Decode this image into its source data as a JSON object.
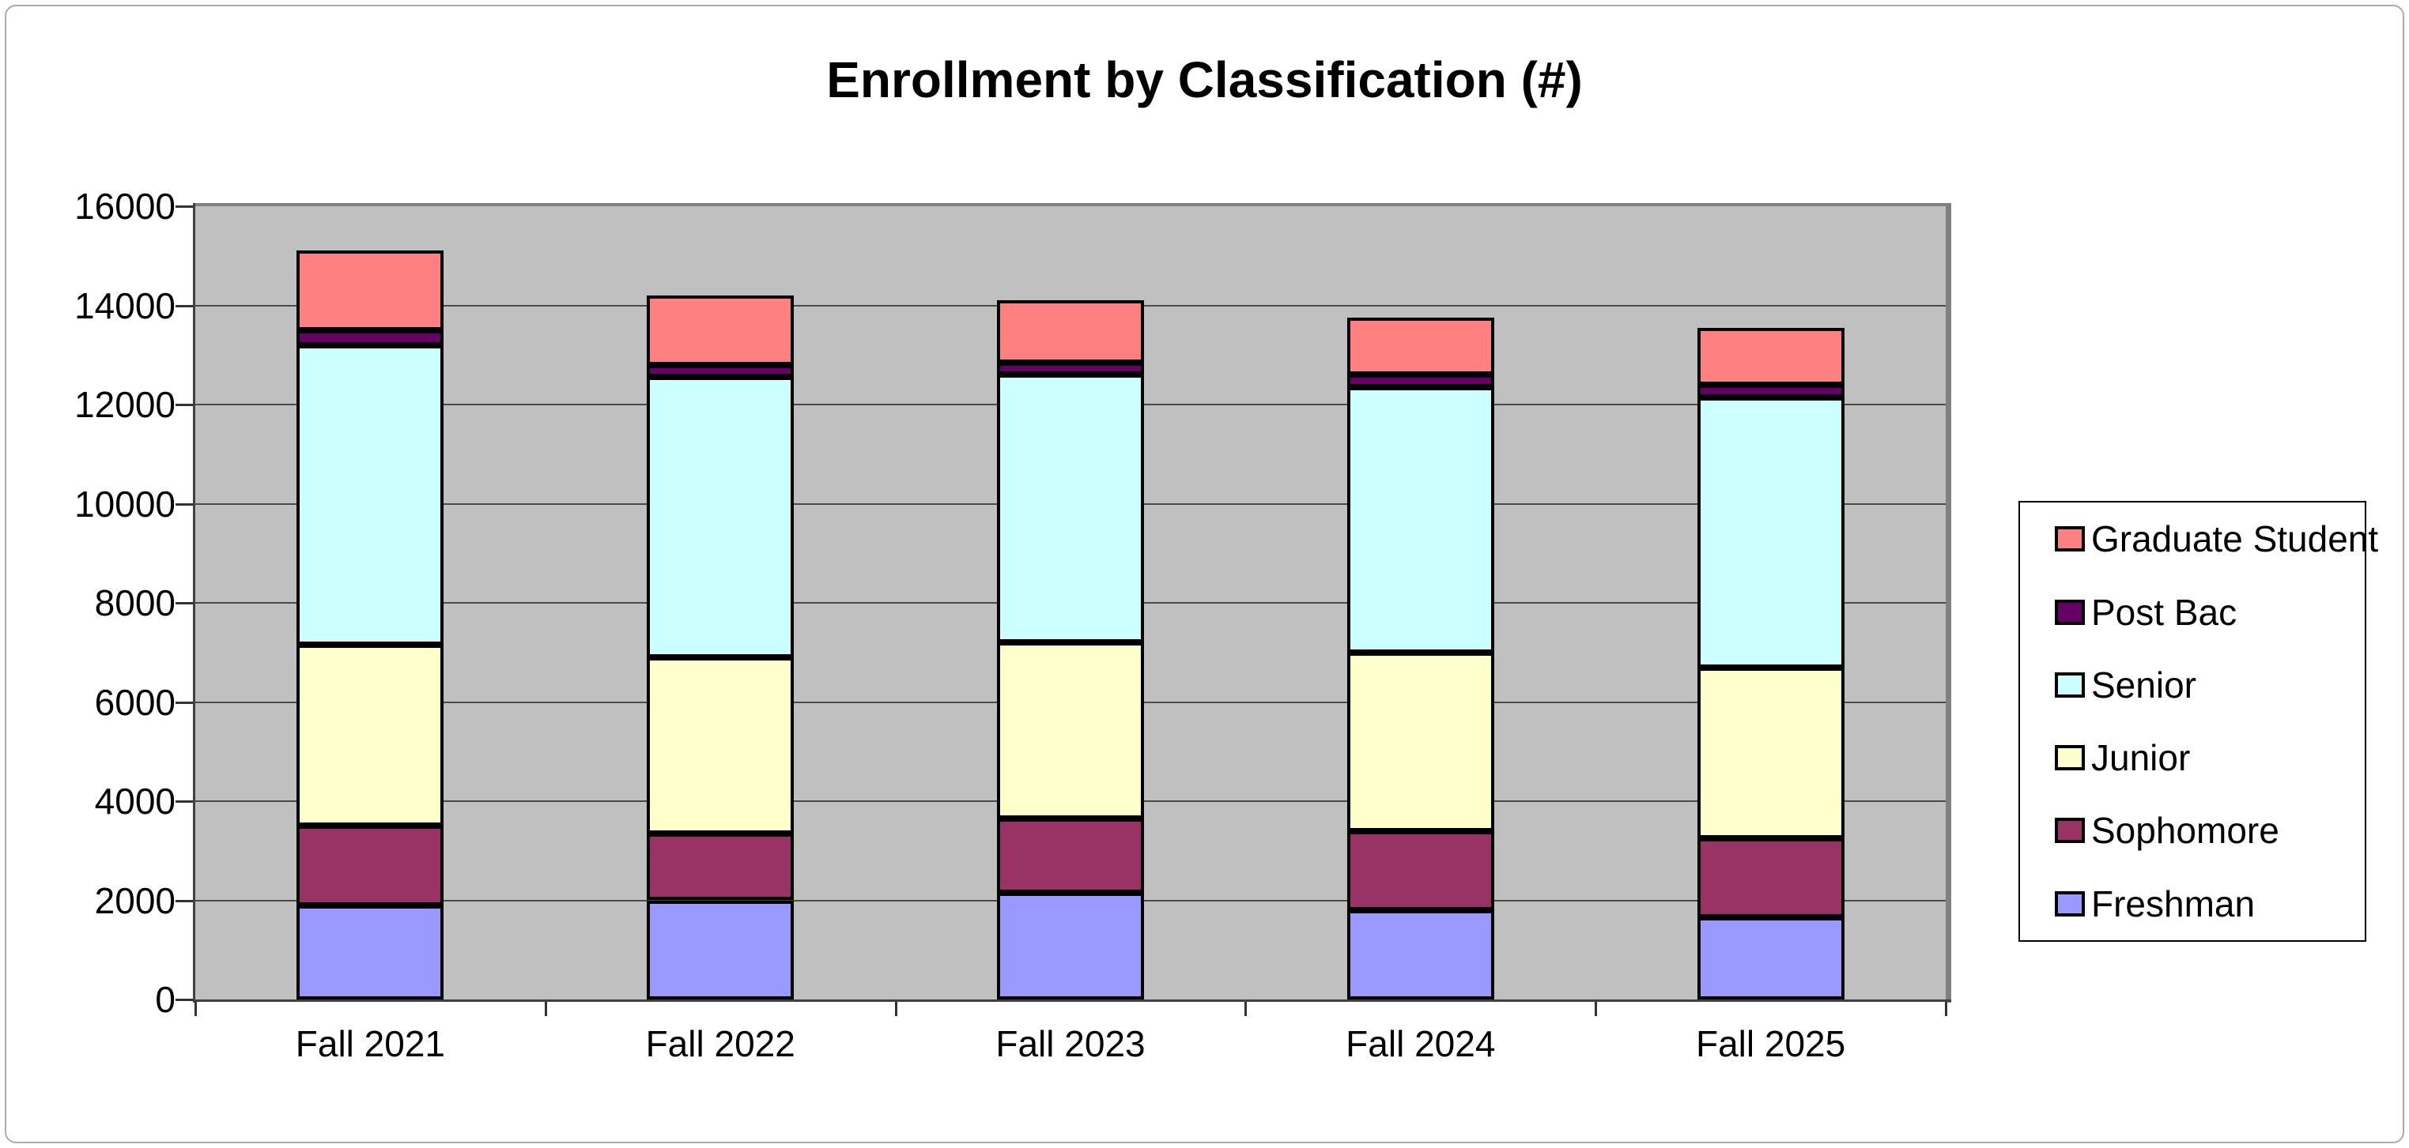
{
  "title": "Enrollment by Classification (#)",
  "chart_data": {
    "type": "bar",
    "stacked": true,
    "title": "Enrollment by Classification (#)",
    "categories": [
      "Fall 2021",
      "Fall 2022",
      "Fall 2023",
      "Fall 2024",
      "Fall 2025"
    ],
    "series": [
      {
        "name": "Freshman",
        "color": "#9999FF",
        "values": [
          1900,
          2000,
          2150,
          1800,
          1650
        ]
      },
      {
        "name": "Sophomore",
        "color": "#993366",
        "values": [
          1600,
          1350,
          1500,
          1600,
          1600
        ]
      },
      {
        "name": "Junior",
        "color": "#FFFFCC",
        "values": [
          3650,
          3550,
          3550,
          3600,
          3450
        ]
      },
      {
        "name": "Senior",
        "color": "#CCFFFF",
        "values": [
          6050,
          5650,
          5400,
          5350,
          5450
        ]
      },
      {
        "name": "Post Bac",
        "color": "#660066",
        "values": [
          300,
          250,
          250,
          250,
          250
        ]
      },
      {
        "name": "Graduate Student",
        "color": "#FF8080",
        "values": [
          1600,
          1400,
          1250,
          1150,
          1150
        ]
      }
    ],
    "totals": [
      15100,
      14200,
      14100,
      13750,
      13550
    ],
    "ylim": [
      0,
      16000
    ],
    "ytick_step": 2000,
    "yticks": [
      "0",
      "2000",
      "4000",
      "6000",
      "8000",
      "10000",
      "12000",
      "14000",
      "16000"
    ],
    "legend_position": "right",
    "legend_order": [
      "Graduate Student",
      "Post Bac",
      "Senior",
      "Junior",
      "Sophomore",
      "Freshman"
    ],
    "colors": {
      "plot_background": "#C0C0C0",
      "gridline": "#4a4a4a",
      "plot_top_right_border": "#808080",
      "axis": "#404040",
      "bar_border": "#000000",
      "legend_border": "#000000",
      "outer_frame": "#ababab"
    }
  }
}
